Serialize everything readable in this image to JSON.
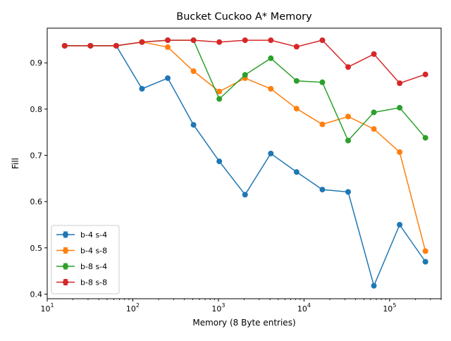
{
  "chart_data": {
    "type": "line",
    "title": "Bucket Cuckoo A* Memory",
    "xlabel": "Memory (8 Byte entries)",
    "ylabel": "Fill",
    "xscale": "log",
    "xlim": [
      10,
      400000
    ],
    "ylim": [
      0.39,
      0.975
    ],
    "x_ticks": [
      {
        "value": 10,
        "base": "10",
        "exp": "1"
      },
      {
        "value": 100,
        "base": "10",
        "exp": "2"
      },
      {
        "value": 1000,
        "base": "10",
        "exp": "3"
      },
      {
        "value": 10000,
        "base": "10",
        "exp": "4"
      },
      {
        "value": 100000,
        "base": "10",
        "exp": "5"
      }
    ],
    "y_ticks": [
      {
        "value": 0.4,
        "label": "0.4"
      },
      {
        "value": 0.5,
        "label": "0.5"
      },
      {
        "value": 0.6,
        "label": "0.6"
      },
      {
        "value": 0.7,
        "label": "0.7"
      },
      {
        "value": 0.8,
        "label": "0.8"
      },
      {
        "value": 0.9,
        "label": "0.9"
      }
    ],
    "x": [
      16,
      32,
      64,
      128,
      256,
      512,
      1024,
      2048,
      4096,
      8192,
      16384,
      32768,
      65536,
      131072,
      262144
    ],
    "series": [
      {
        "name": "b-4 s-4",
        "color": "#1f77b4",
        "values": [
          0.937,
          0.937,
          0.937,
          0.844,
          0.867,
          0.766,
          0.687,
          0.615,
          0.704,
          0.664,
          0.626,
          0.621,
          0.418,
          0.55,
          0.47
        ]
      },
      {
        "name": "b-4 s-8",
        "color": "#ff7f0e",
        "values": [
          0.937,
          0.937,
          0.937,
          0.945,
          0.934,
          0.882,
          0.838,
          0.867,
          0.844,
          0.801,
          0.767,
          0.784,
          0.757,
          0.707,
          0.493
        ]
      },
      {
        "name": "b-8 s-4",
        "color": "#2ca02c",
        "values": [
          0.937,
          0.937,
          0.937,
          0.945,
          0.949,
          0.949,
          0.822,
          0.874,
          0.91,
          0.861,
          0.858,
          0.732,
          0.793,
          0.803,
          0.738
        ]
      },
      {
        "name": "b-8 s-8",
        "color": "#d62728",
        "values": [
          0.937,
          0.937,
          0.937,
          0.945,
          0.949,
          0.949,
          0.945,
          0.949,
          0.949,
          0.935,
          0.949,
          0.891,
          0.919,
          0.856,
          0.875
        ]
      }
    ],
    "legend_position": "lower-left",
    "grid": false
  }
}
